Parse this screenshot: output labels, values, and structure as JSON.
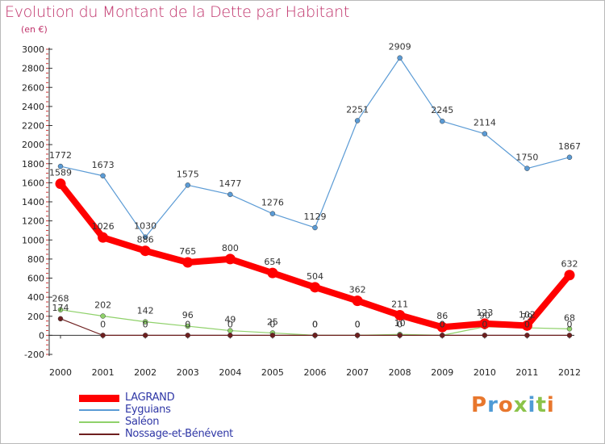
{
  "title": "Evolution du Montant de la Dette par Habitant",
  "unit": "(en €)",
  "brand": "Proxiti",
  "brand_colors": [
    "#e8772d",
    "#4f9bd6",
    "#e8772d",
    "#8bc34a",
    "#4f9bd6",
    "#8bc34a",
    "#e8772d"
  ],
  "chart_data": {
    "type": "line",
    "title": "Evolution du Montant de la Dette par Habitant",
    "ylabel": "(en €)",
    "xlabel": "",
    "ylim": [
      -200,
      3000
    ],
    "yticks": [
      -200,
      0,
      200,
      400,
      600,
      800,
      1000,
      1200,
      1400,
      1600,
      1800,
      2000,
      2200,
      2400,
      2600,
      2800,
      3000
    ],
    "x": [
      "2000",
      "2001",
      "2002",
      "2003",
      "2004",
      "2005",
      "2006",
      "2007",
      "2008",
      "2009",
      "2010",
      "2011",
      "2012"
    ],
    "grid": false,
    "legend_position": "bottom-left",
    "series": [
      {
        "name": "LAGRAND",
        "color": "#ff0000",
        "width": 8,
        "values": [
          1589,
          1026,
          886,
          765,
          800,
          654,
          504,
          362,
          211,
          86,
          123,
          102,
          632
        ],
        "labels": [
          "1589",
          "1026",
          "886",
          "765",
          "800",
          "654",
          "504",
          "362",
          "211",
          "86",
          "123",
          "102",
          "632"
        ]
      },
      {
        "name": "Eyguians",
        "color": "#5b9bd5",
        "width": 1.2,
        "values": [
          1772,
          1673,
          1030,
          1575,
          1477,
          1276,
          1129,
          2251,
          2909,
          2245,
          2114,
          1750,
          1867
        ],
        "labels": [
          "1772",
          "1673",
          "1030",
          "1575",
          "1477",
          "1276",
          "1129",
          "2251",
          "2909",
          "2245",
          "2114",
          "1750",
          "1867"
        ]
      },
      {
        "name": "Saléon",
        "color": "#8fd16a",
        "width": 1.2,
        "values": [
          268,
          202,
          142,
          96,
          49,
          25,
          0,
          0,
          10,
          0,
          90,
          79,
          68
        ],
        "labels": [
          "268",
          "202",
          "142",
          "96",
          "49",
          "25",
          "0",
          "0",
          "10",
          "0",
          "90",
          "79",
          "68"
        ]
      },
      {
        "name": "Nossage-et-Bénévent",
        "color": "#6e1f1f",
        "width": 1.2,
        "values": [
          174,
          0,
          0,
          0,
          0,
          0,
          0,
          0,
          0,
          0,
          0,
          0,
          0
        ],
        "labels": [
          "174",
          "0",
          "0",
          "0",
          "0",
          "0",
          "0",
          "0",
          "0",
          "0",
          "0",
          "0",
          "0"
        ]
      }
    ]
  }
}
